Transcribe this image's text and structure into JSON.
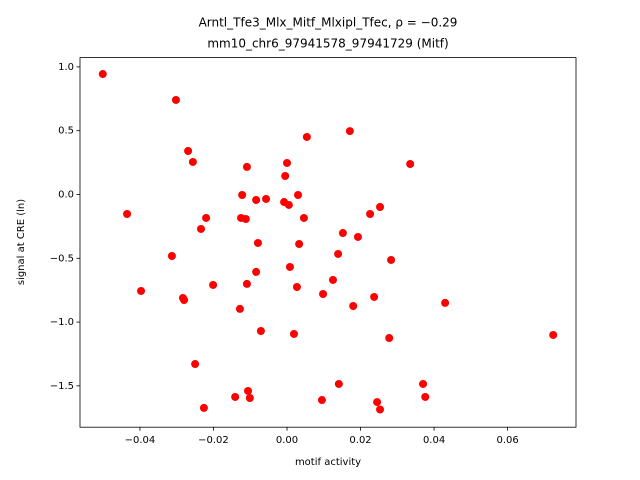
{
  "chart_data": {
    "type": "scatter",
    "title": "Arntl_Tfe3_Mlx_Mitf_Mlxipl_Tfec, ρ = −0.29",
    "subtitle": "mm10_chr6_97941578_97941729 (Mitf)",
    "x_label": "motif activity",
    "y_label": "signal at CRE (ln)",
    "color": "#ff0000",
    "x": [
      -0.0501,
      -0.0302,
      -0.0269,
      -0.0256,
      0.0054,
      0.0171,
      0.0335,
      0.0,
      -0.0005,
      -0.0109,
      -0.0122,
      0.003,
      -0.0084,
      -0.0057,
      -0.0008,
      0.0005,
      0.0046,
      0.0253,
      0.0226,
      -0.0125,
      -0.0112,
      -0.022,
      -0.0435,
      -0.0234,
      0.0152,
      0.0193,
      -0.0079,
      0.0033,
      -0.0313,
      0.0139,
      0.0283,
      0.0008,
      -0.0084,
      0.0125,
      -0.0109,
      -0.0201,
      -0.0397,
      0.0027,
      0.0098,
      -0.0283,
      -0.028,
      0.0237,
      0.043,
      0.018,
      -0.0128,
      -0.0071,
      0.0019,
      0.0278,
      0.0724,
      -0.025,
      0.037,
      0.0141,
      -0.0106,
      -0.0141,
      -0.0101,
      0.0376,
      0.0095,
      0.0245,
      -0.0226,
      0.0253
    ],
    "values": [
      0.944,
      0.741,
      0.341,
      0.255,
      0.451,
      0.497,
      0.239,
      0.247,
      0.145,
      0.216,
      -0.004,
      -0.004,
      -0.043,
      -0.035,
      -0.059,
      -0.082,
      -0.184,
      -0.098,
      -0.153,
      -0.184,
      -0.192,
      -0.184,
      -0.153,
      -0.27,
      -0.302,
      -0.333,
      -0.38,
      -0.388,
      -0.482,
      -0.466,
      -0.513,
      -0.568,
      -0.607,
      -0.67,
      -0.701,
      -0.709,
      -0.756,
      -0.725,
      -0.78,
      -0.811,
      -0.827,
      -0.803,
      -0.85,
      -0.874,
      -0.897,
      -1.07,
      -1.093,
      -1.125,
      -1.101,
      -1.329,
      -1.485,
      -1.485,
      -1.54,
      -1.587,
      -1.595,
      -1.587,
      -1.611,
      -1.627,
      -1.673,
      -1.685
    ],
    "xlim": [
      -0.0563,
      0.0786
    ],
    "ylim": [
      -1.824,
      1.073
    ],
    "xticks": [
      {
        "value": -0.04,
        "label": "−0.04"
      },
      {
        "value": -0.02,
        "label": "−0.02"
      },
      {
        "value": 0,
        "label": "0.00"
      },
      0.02,
      0.04,
      0.06
    ],
    "yticks": [
      {
        "value": -1.5,
        "label": "−1.5"
      },
      {
        "value": -1.0,
        "label": "−1.0"
      },
      {
        "value": -0.5,
        "label": "−0.5"
      },
      {
        "value": 0,
        "label": "0.0"
      },
      0.5,
      {
        "value": 1.0,
        "label": "1.0"
      }
    ]
  }
}
